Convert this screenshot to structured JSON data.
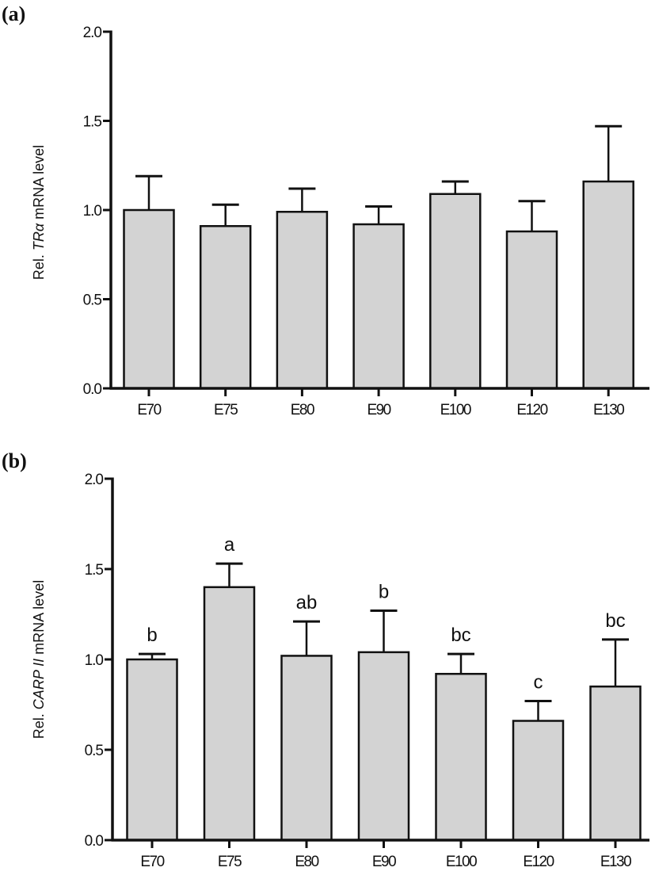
{
  "chart_data": [
    {
      "type": "bar",
      "panel_label": "(a)",
      "ylabel": {
        "prefix": "Rel. ",
        "gene": "TRα",
        "suffix": " mRNA level"
      },
      "xlabel": "",
      "ylim": [
        0,
        2.0
      ],
      "yticks": [
        "0.0",
        "0.5",
        "1.0",
        "1.5",
        "2.0"
      ],
      "ytick_values": [
        0,
        0.5,
        1.0,
        1.5,
        2.0
      ],
      "categories": [
        "E70",
        "E75",
        "E80",
        "E90",
        "E100",
        "E120",
        "E130"
      ],
      "values": [
        1.0,
        0.91,
        0.99,
        0.92,
        1.09,
        0.88,
        1.16
      ],
      "error_upper": [
        1.19,
        1.03,
        1.12,
        1.02,
        1.16,
        1.05,
        1.47
      ],
      "significance": [],
      "bar_color": "#d3d3d3",
      "grid": false
    },
    {
      "type": "bar",
      "panel_label": "(b)",
      "ylabel": {
        "prefix": "Rel. ",
        "gene": "CARP II",
        "suffix": " mRNA level"
      },
      "xlabel": "",
      "ylim": [
        0,
        2.0
      ],
      "yticks": [
        "0.0",
        "0.5",
        "1.0",
        "1.5",
        "2.0"
      ],
      "ytick_values": [
        0,
        0.5,
        1.0,
        1.5,
        2.0
      ],
      "categories": [
        "E70",
        "E75",
        "E80",
        "E90",
        "E100",
        "E120",
        "E130"
      ],
      "values": [
        1.0,
        1.4,
        1.02,
        1.04,
        0.92,
        0.66,
        0.85
      ],
      "error_upper": [
        1.03,
        1.53,
        1.21,
        1.27,
        1.03,
        0.77,
        1.11
      ],
      "significance": [
        "b",
        "a",
        "ab",
        "b",
        "bc",
        "c",
        "bc"
      ],
      "bar_color": "#d3d3d3",
      "grid": false
    }
  ]
}
